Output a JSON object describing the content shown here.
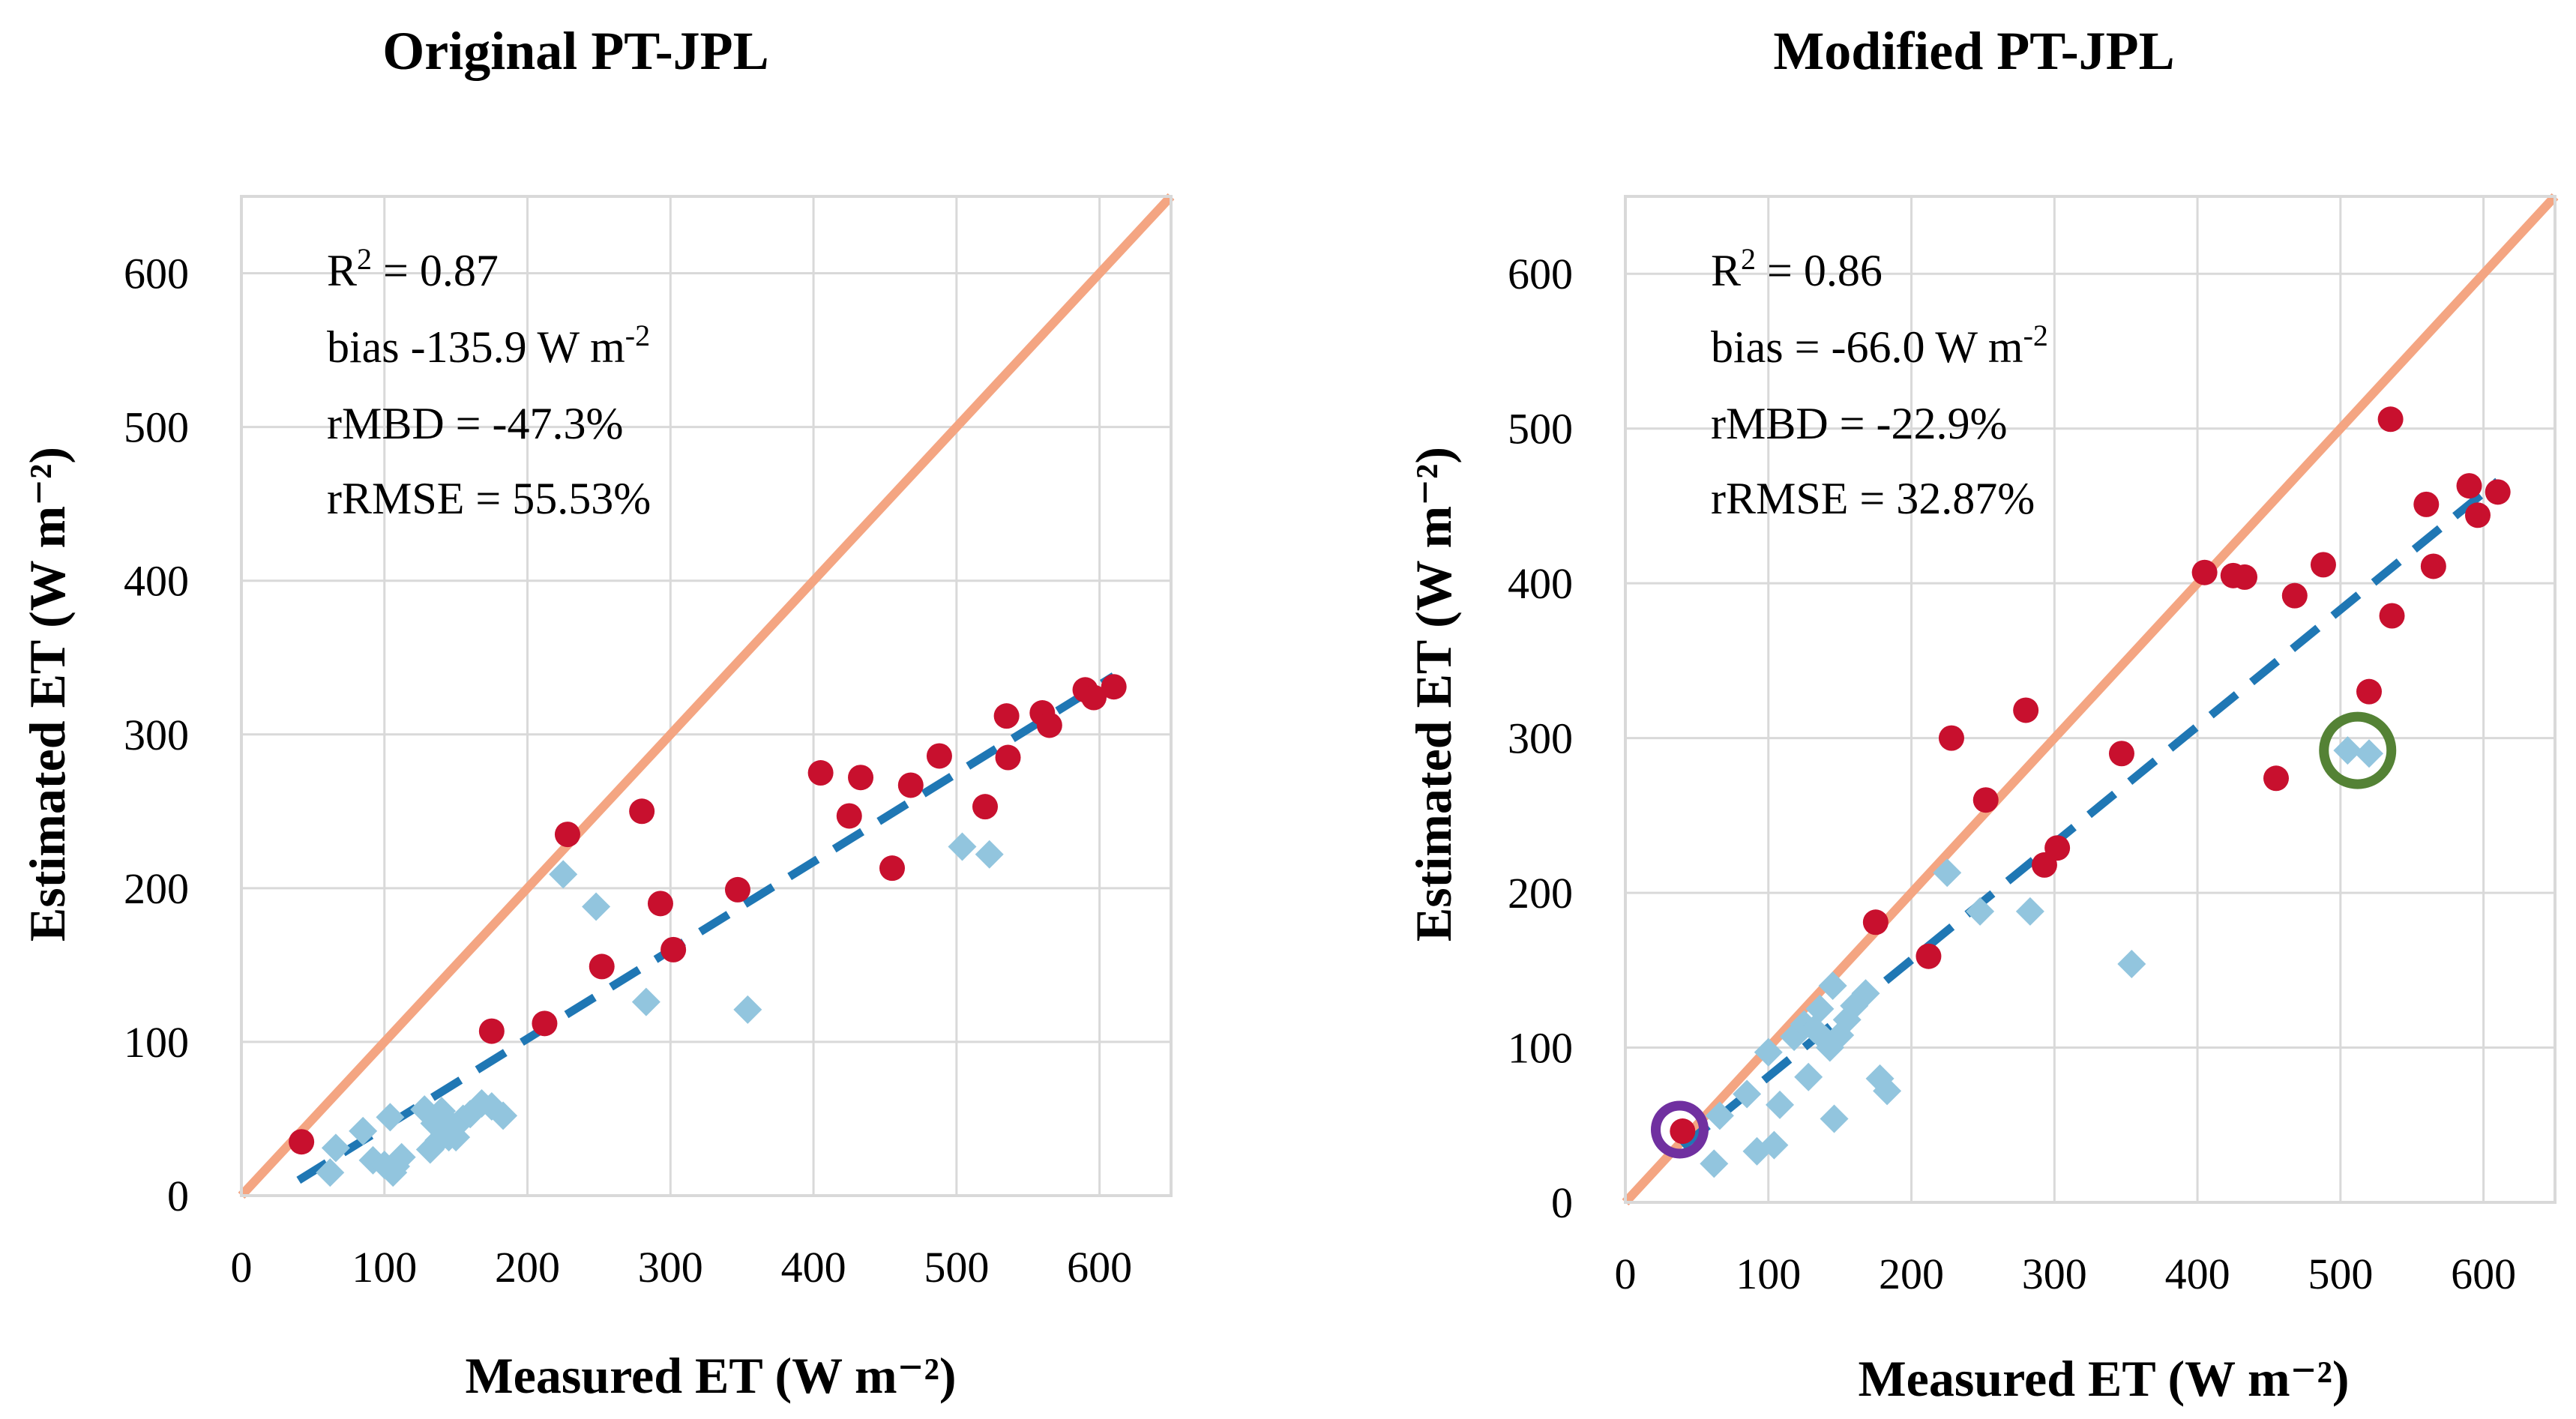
{
  "chart_data": [
    {
      "type": "scatter",
      "title": "Original PT-JPL",
      "xlabel": "Measured ET (W m⁻²)",
      "ylabel": "Estimated ET (W m⁻²)",
      "xlim": [
        0,
        650
      ],
      "ylim": [
        0,
        650
      ],
      "xticks": [
        "0",
        "100",
        "200",
        "300",
        "400",
        "500",
        "600"
      ],
      "yticks": [
        "0",
        "100",
        "200",
        "300",
        "400",
        "500",
        "600"
      ],
      "stats": {
        "r2_prefix": "R",
        "r2_sup": "2",
        "r2_value": " = 0.87",
        "bias_text": "bias -135.9 W m",
        "bias_sup": "-2",
        "rmbd": "rMBD = -47.3%",
        "rrmse": "rRMSE = 55.53%"
      },
      "one_to_one": [
        [
          0,
          0
        ],
        [
          650,
          650
        ]
      ],
      "trendline": [
        [
          40,
          10
        ],
        [
          610,
          338
        ]
      ],
      "colors": {
        "red": "#C8102E",
        "blue": "#92C5DE",
        "one_to_one": "#F4A582",
        "trend": "#1F77B4"
      },
      "series": [
        {
          "name": "red points",
          "marker": "circle",
          "points": [
            [
              42,
              35
            ],
            [
              175,
              107
            ],
            [
              212,
              112
            ],
            [
              228,
              235
            ],
            [
              252,
              149
            ],
            [
              280,
              250
            ],
            [
              293,
              190
            ],
            [
              302,
              160
            ],
            [
              347,
              199
            ],
            [
              405,
              275
            ],
            [
              425,
              247
            ],
            [
              433,
              272
            ],
            [
              455,
              213
            ],
            [
              468,
              267
            ],
            [
              488,
              286
            ],
            [
              520,
              253
            ],
            [
              535,
              312
            ],
            [
              536,
              285
            ],
            [
              560,
              314
            ],
            [
              565,
              306
            ],
            [
              590,
              329
            ],
            [
              596,
              324
            ],
            [
              610,
              331
            ]
          ]
        },
        {
          "name": "blue points",
          "marker": "diamond",
          "points": [
            [
              62,
              15
            ],
            [
              66,
              31
            ],
            [
              85,
              42
            ],
            [
              92,
              23
            ],
            [
              100,
              20
            ],
            [
              104,
              51
            ],
            [
              106,
              15
            ],
            [
              108,
              19
            ],
            [
              112,
              25
            ],
            [
              128,
              56
            ],
            [
              132,
              30
            ],
            [
              135,
              47
            ],
            [
              138,
              36
            ],
            [
              140,
              55
            ],
            [
              142,
              40
            ],
            [
              145,
              38
            ],
            [
              148,
              45
            ],
            [
              150,
              38
            ],
            [
              155,
              50
            ],
            [
              160,
              53
            ],
            [
              168,
              60
            ],
            [
              175,
              58
            ],
            [
              183,
              52
            ],
            [
              225,
              209
            ],
            [
              248,
              188
            ],
            [
              283,
              126
            ],
            [
              354,
              121
            ],
            [
              504,
              227
            ],
            [
              523,
              222
            ]
          ]
        }
      ]
    },
    {
      "type": "scatter",
      "title": "Modified PT-JPL",
      "xlabel": "Measured ET (W m⁻²)",
      "ylabel": "Estimated ET (W m⁻²)",
      "xlim": [
        0,
        650
      ],
      "ylim": [
        0,
        650
      ],
      "xticks": [
        "0",
        "100",
        "200",
        "300",
        "400",
        "500",
        "600"
      ],
      "yticks": [
        "0",
        "100",
        "200",
        "300",
        "400",
        "500",
        "600"
      ],
      "stats": {
        "r2_prefix": "R",
        "r2_sup": "2",
        "r2_value": " = 0.86",
        "bias_text": "bias = -66.0 W m",
        "bias_sup": "-2",
        "rmbd": "rMBD = -22.9%",
        "rrmse": "rRMSE = 32.87%"
      },
      "one_to_one": [
        [
          0,
          0
        ],
        [
          650,
          650
        ]
      ],
      "trendline": [
        [
          40,
          36
        ],
        [
          610,
          466
        ]
      ],
      "annotations": [
        {
          "name": "purple-circle",
          "x": 38,
          "y": 47,
          "color": "#7030A0"
        },
        {
          "name": "green-circle",
          "x": 512,
          "y": 292,
          "color": "#548235"
        }
      ],
      "colors": {
        "red": "#C8102E",
        "blue": "#92C5DE",
        "one_to_one": "#F4A582",
        "trend": "#1F77B4"
      },
      "series": [
        {
          "name": "red points",
          "marker": "circle",
          "points": [
            [
              40,
              46
            ],
            [
              175,
              181
            ],
            [
              212,
              159
            ],
            [
              228,
              300
            ],
            [
              252,
              260
            ],
            [
              280,
              318
            ],
            [
              293,
              218
            ],
            [
              302,
              229
            ],
            [
              347,
              290
            ],
            [
              405,
              407
            ],
            [
              425,
              405
            ],
            [
              433,
              404
            ],
            [
              455,
              274
            ],
            [
              468,
              392
            ],
            [
              488,
              412
            ],
            [
              520,
              330
            ],
            [
              535,
              506
            ],
            [
              536,
              379
            ],
            [
              560,
              451
            ],
            [
              565,
              411
            ],
            [
              590,
              463
            ],
            [
              596,
              444
            ],
            [
              610,
              459
            ]
          ]
        },
        {
          "name": "blue points",
          "marker": "diamond",
          "points": [
            [
              62,
              25
            ],
            [
              66,
              56
            ],
            [
              85,
              70
            ],
            [
              92,
              33
            ],
            [
              100,
              97
            ],
            [
              104,
              37
            ],
            [
              108,
              63
            ],
            [
              118,
              107
            ],
            [
              125,
              115
            ],
            [
              128,
              81
            ],
            [
              132,
              112
            ],
            [
              136,
              125
            ],
            [
              140,
              105
            ],
            [
              143,
              100
            ],
            [
              145,
              140
            ],
            [
              146,
              54
            ],
            [
              150,
              108
            ],
            [
              155,
              118
            ],
            [
              160,
              127
            ],
            [
              168,
              135
            ],
            [
              178,
              80
            ],
            [
              183,
              72
            ],
            [
              225,
              213
            ],
            [
              248,
              188
            ],
            [
              283,
              188
            ],
            [
              354,
              154
            ],
            [
              505,
              292
            ],
            [
              520,
              290
            ]
          ]
        }
      ]
    }
  ]
}
